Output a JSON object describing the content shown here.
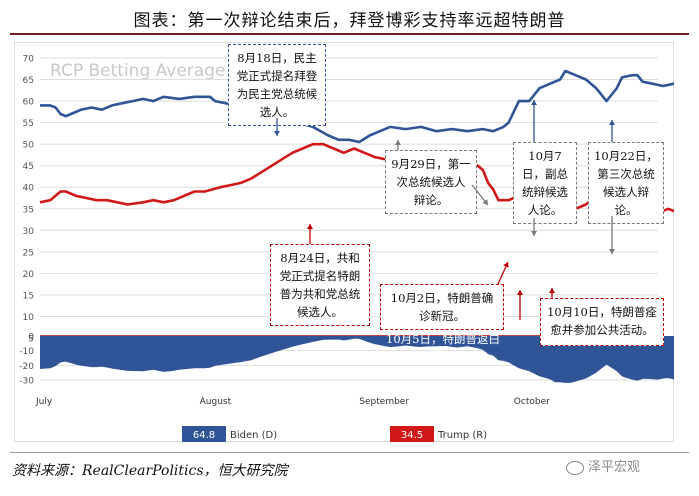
{
  "page_title": "图表：第一次辩论结束后，拜登博彩支持率远超特朗普",
  "source": "资料来源：RealClearPolitics，恒大研究院",
  "watermark": "泽平宏观",
  "chart_data": {
    "type": "line",
    "watermark_title": "RCP Betting Average",
    "ylim": [
      -30,
      70
    ],
    "yticks": [
      -30,
      -20,
      -10,
      0,
      5,
      10,
      15,
      20,
      25,
      30,
      35,
      40,
      45,
      50,
      55,
      60,
      65,
      70
    ],
    "x_labels": [
      {
        "t": 0,
        "label": "July"
      },
      {
        "t": 31,
        "label": "August"
      },
      {
        "t": 62,
        "label": "September"
      },
      {
        "t": 92,
        "label": "October"
      }
    ],
    "x_range": [
      0,
      120
    ],
    "colors": {
      "biden": "#2f5597",
      "trump": "#d01818",
      "spread_fill": "#2f5597",
      "grid": "#dddddd"
    },
    "series": [
      {
        "name": "Biden (D)",
        "latest": "64.8",
        "color": "#2f5597",
        "points": [
          [
            0,
            59
          ],
          [
            2,
            59
          ],
          [
            3,
            58.5
          ],
          [
            4,
            57
          ],
          [
            5,
            56.5
          ],
          [
            6,
            57
          ],
          [
            8,
            58
          ],
          [
            10,
            58.5
          ],
          [
            12,
            58
          ],
          [
            14,
            59
          ],
          [
            16,
            59.5
          ],
          [
            18,
            60
          ],
          [
            20,
            60.5
          ],
          [
            22,
            60
          ],
          [
            24,
            61
          ],
          [
            27,
            60.5
          ],
          [
            30,
            61
          ],
          [
            33,
            61
          ],
          [
            34,
            60
          ],
          [
            36,
            59.5
          ],
          [
            38,
            59
          ],
          [
            41,
            58.5
          ],
          [
            44,
            57
          ],
          [
            47,
            56
          ],
          [
            50,
            55
          ],
          [
            53,
            54
          ],
          [
            56,
            52
          ],
          [
            58,
            51
          ],
          [
            60,
            51
          ],
          [
            62,
            50.5
          ],
          [
            64,
            52
          ],
          [
            66,
            53
          ],
          [
            68,
            54
          ],
          [
            71,
            53.5
          ],
          [
            74,
            54
          ],
          [
            77,
            53
          ],
          [
            80,
            53.5
          ],
          [
            83,
            53
          ],
          [
            86,
            53.5
          ],
          [
            88,
            53
          ],
          [
            90,
            54
          ],
          [
            91,
            55
          ],
          [
            93,
            60
          ],
          [
            95,
            60
          ],
          [
            97,
            63
          ],
          [
            99,
            64
          ],
          [
            101,
            65
          ],
          [
            102,
            67
          ],
          [
            104,
            66
          ],
          [
            106,
            65
          ],
          [
            108,
            63
          ],
          [
            110,
            60
          ],
          [
            112,
            63
          ],
          [
            113,
            65.5
          ],
          [
            115,
            66
          ],
          [
            116,
            66
          ],
          [
            117,
            64.5
          ],
          [
            119,
            64
          ],
          [
            121,
            63.5
          ],
          [
            123,
            64
          ],
          [
            125,
            65
          ]
        ]
      },
      {
        "name": "Trump (R)",
        "latest": "34.5",
        "color": "#d01818",
        "points": [
          [
            0,
            36.5
          ],
          [
            2,
            37
          ],
          [
            3,
            38
          ],
          [
            4,
            39
          ],
          [
            5,
            39
          ],
          [
            7,
            38
          ],
          [
            9,
            37.5
          ],
          [
            11,
            37
          ],
          [
            13,
            37
          ],
          [
            15,
            36.5
          ],
          [
            17,
            36
          ],
          [
            20,
            36.5
          ],
          [
            22,
            37
          ],
          [
            24,
            36.5
          ],
          [
            26,
            37
          ],
          [
            28,
            38
          ],
          [
            30,
            39
          ],
          [
            32,
            39
          ],
          [
            35,
            40
          ],
          [
            37,
            40.5
          ],
          [
            39,
            41
          ],
          [
            41,
            42
          ],
          [
            43,
            43.5
          ],
          [
            45,
            45
          ],
          [
            47,
            46.5
          ],
          [
            49,
            48
          ],
          [
            51,
            49
          ],
          [
            53,
            50
          ],
          [
            55,
            50
          ],
          [
            57,
            49
          ],
          [
            59,
            48
          ],
          [
            61,
            49
          ],
          [
            63,
            48
          ],
          [
            65,
            47
          ],
          [
            67,
            46.5
          ],
          [
            69,
            46.5
          ],
          [
            71,
            47
          ],
          [
            73,
            46.5
          ],
          [
            75,
            46.5
          ],
          [
            77,
            46
          ],
          [
            79,
            46.5
          ],
          [
            81,
            45.5
          ],
          [
            83,
            46
          ],
          [
            85,
            45
          ],
          [
            86,
            44
          ],
          [
            87,
            41
          ],
          [
            88,
            39.5
          ],
          [
            89,
            37
          ],
          [
            91,
            37
          ],
          [
            93,
            38
          ],
          [
            95,
            36
          ],
          [
            97,
            35.5
          ],
          [
            99,
            34.5
          ],
          [
            100,
            33
          ],
          [
            102,
            34
          ],
          [
            104,
            35
          ],
          [
            106,
            36
          ],
          [
            108,
            38
          ],
          [
            110,
            40.5
          ],
          [
            112,
            39
          ],
          [
            114,
            37
          ],
          [
            116,
            35.5
          ],
          [
            118,
            35
          ],
          [
            120,
            34
          ],
          [
            122,
            35
          ],
          [
            123,
            34.5
          ],
          [
            125,
            34.5
          ]
        ]
      }
    ]
  },
  "legend": {
    "biden_value": "64.8",
    "biden_label": "Biden (D)",
    "trump_value": "34.5",
    "trump_label": "Trump (R)"
  },
  "annotations": [
    {
      "id": "ann-aug18",
      "text": "8月18日，民主党正式提名拜登为民主党总统候选人。",
      "color": "#2f5597",
      "arrow_color": "#2f5597"
    },
    {
      "id": "ann-aug24",
      "text": "8月24日，共和党正式提名特朗普为共和党总统候选人。",
      "color": "#c00000",
      "arrow_color": "#c00000"
    },
    {
      "id": "ann-sep29",
      "text": "9月29日，第一次总统候选人辩论。",
      "color": "#777777",
      "arrow_color": "#777777"
    },
    {
      "id": "ann-oct2",
      "text": "10月2日，特朗普确诊新冠。",
      "color": "#c00000",
      "arrow_color": "#c00000"
    },
    {
      "id": "ann-oct5",
      "text": "10月5日，特朗普返白宫。",
      "color": "#c00000",
      "arrow_color": "#c00000"
    },
    {
      "id": "ann-oct7",
      "text": "10月7日，副总统辩候选人论。",
      "color": "#777777",
      "arrow_color": "#777777"
    },
    {
      "id": "ann-oct10",
      "text": "10月10日，特朗普痊愈并参加公共活动。",
      "color": "#c00000",
      "arrow_color": "#c00000"
    },
    {
      "id": "ann-oct22",
      "text": "10月22日，第三次总统候选人辩论。",
      "color": "#777777",
      "arrow_color": "#777777"
    }
  ]
}
